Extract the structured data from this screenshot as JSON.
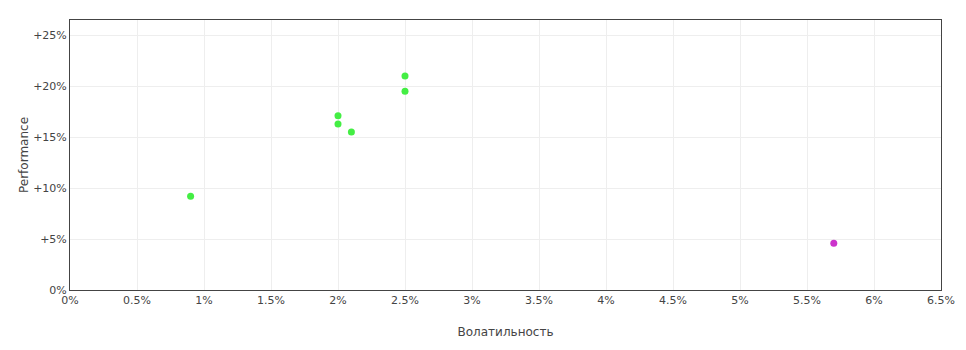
{
  "chart_data": {
    "type": "scatter",
    "xlabel": "Волатильность",
    "ylabel": "Performance",
    "series": [
      {
        "color": "#44ee44",
        "x": [
          0.009,
          0.02,
          0.02,
          0.021,
          0.025,
          0.025
        ],
        "values": [
          0.092,
          0.171,
          0.163,
          0.155,
          0.195,
          0.21
        ]
      },
      {
        "color": "#cc33cc",
        "x": [
          0.057
        ],
        "values": [
          0.046
        ]
      }
    ],
    "xlim": [
      0.0,
      0.065
    ],
    "ylim": [
      0.0,
      0.265
    ],
    "xticks": [
      {
        "value": 0.0,
        "label": "0%"
      },
      {
        "value": 0.005,
        "label": "0.5%"
      },
      {
        "value": 0.01,
        "label": "1%"
      },
      {
        "value": 0.015,
        "label": "1.5%"
      },
      {
        "value": 0.02,
        "label": "2%"
      },
      {
        "value": 0.025,
        "label": "2.5%"
      },
      {
        "value": 0.03,
        "label": "3%"
      },
      {
        "value": 0.035,
        "label": "3.5%"
      },
      {
        "value": 0.04,
        "label": "4%"
      },
      {
        "value": 0.045,
        "label": "4.5%"
      },
      {
        "value": 0.05,
        "label": "5%"
      },
      {
        "value": 0.055,
        "label": "5.5%"
      },
      {
        "value": 0.06,
        "label": "6%"
      },
      {
        "value": 0.065,
        "label": "6.5%"
      }
    ],
    "yticks": [
      {
        "value": 0.0,
        "label": "0%"
      },
      {
        "value": 0.05,
        "label": "+5%"
      },
      {
        "value": 0.1,
        "label": "+10%"
      },
      {
        "value": 0.15,
        "label": "+15%"
      },
      {
        "value": 0.2,
        "label": "+20%"
      },
      {
        "value": 0.25,
        "label": "+25%"
      }
    ],
    "grid": true
  }
}
